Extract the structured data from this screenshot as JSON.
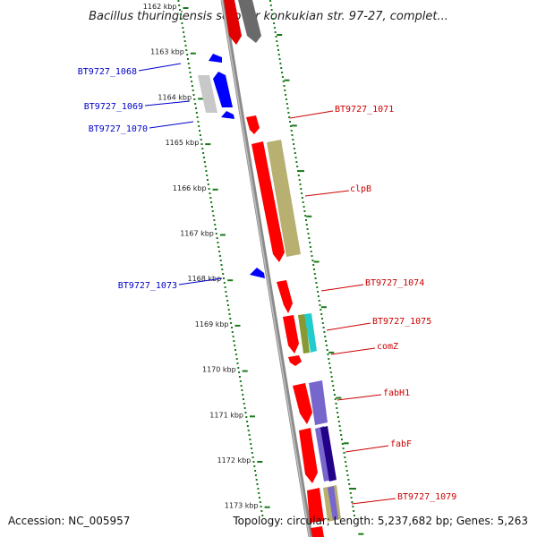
{
  "title": "Bacillus thuringiensis serovar konkukian str. 97-27, complet...",
  "footer": {
    "accession": "Accession: NC_005957",
    "topology": "Topology: circular; Length: 5,237,682 bp; Genes: 5,263"
  },
  "ruler": {
    "labels": [
      "1162 kbp",
      "1163 kbp",
      "1164 kbp",
      "1165 kbp",
      "1166 kbp",
      "1167 kbp",
      "1168 kbp",
      "1169 kbp",
      "1170 kbp",
      "1171 kbp",
      "1172 kbp",
      "1173 kbp"
    ]
  },
  "labels_left": [
    {
      "id": "BT9727_1068",
      "text": "BT9727_1068"
    },
    {
      "id": "BT9727_1069",
      "text": "BT9727_1069"
    },
    {
      "id": "BT9727_1070",
      "text": "BT9727_1070"
    },
    {
      "id": "BT9727_1073",
      "text": "BT9727_1073"
    }
  ],
  "labels_right": [
    {
      "id": "BT9727_1071",
      "text": "BT9727_1071"
    },
    {
      "id": "clpB",
      "text": "clpB"
    },
    {
      "id": "BT9727_1074",
      "text": "BT9727_1074"
    },
    {
      "id": "BT9727_1075",
      "text": "BT9727_1075"
    },
    {
      "id": "comZ",
      "text": "comZ"
    },
    {
      "id": "fabH1",
      "text": "fabH1"
    },
    {
      "id": "fabF",
      "text": "fabF"
    },
    {
      "id": "BT9727_1079",
      "text": "BT9727_1079"
    }
  ],
  "colors": {
    "cds_forward": "#ff0000",
    "cds_reverse": "#0000ff",
    "backbone": "#8a8a8a",
    "tick": "#1a7a1a",
    "left_label": "#0000cc",
    "right_label": "#cc0000",
    "orf_grey": "#777777",
    "orf_light": "#c8c8c8",
    "orf_olive": "#b8b070",
    "orf_purple": "#7766cc",
    "orf_navy": "#220088",
    "orf_cyan": "#22cccc",
    "orf_green": "#889933"
  }
}
